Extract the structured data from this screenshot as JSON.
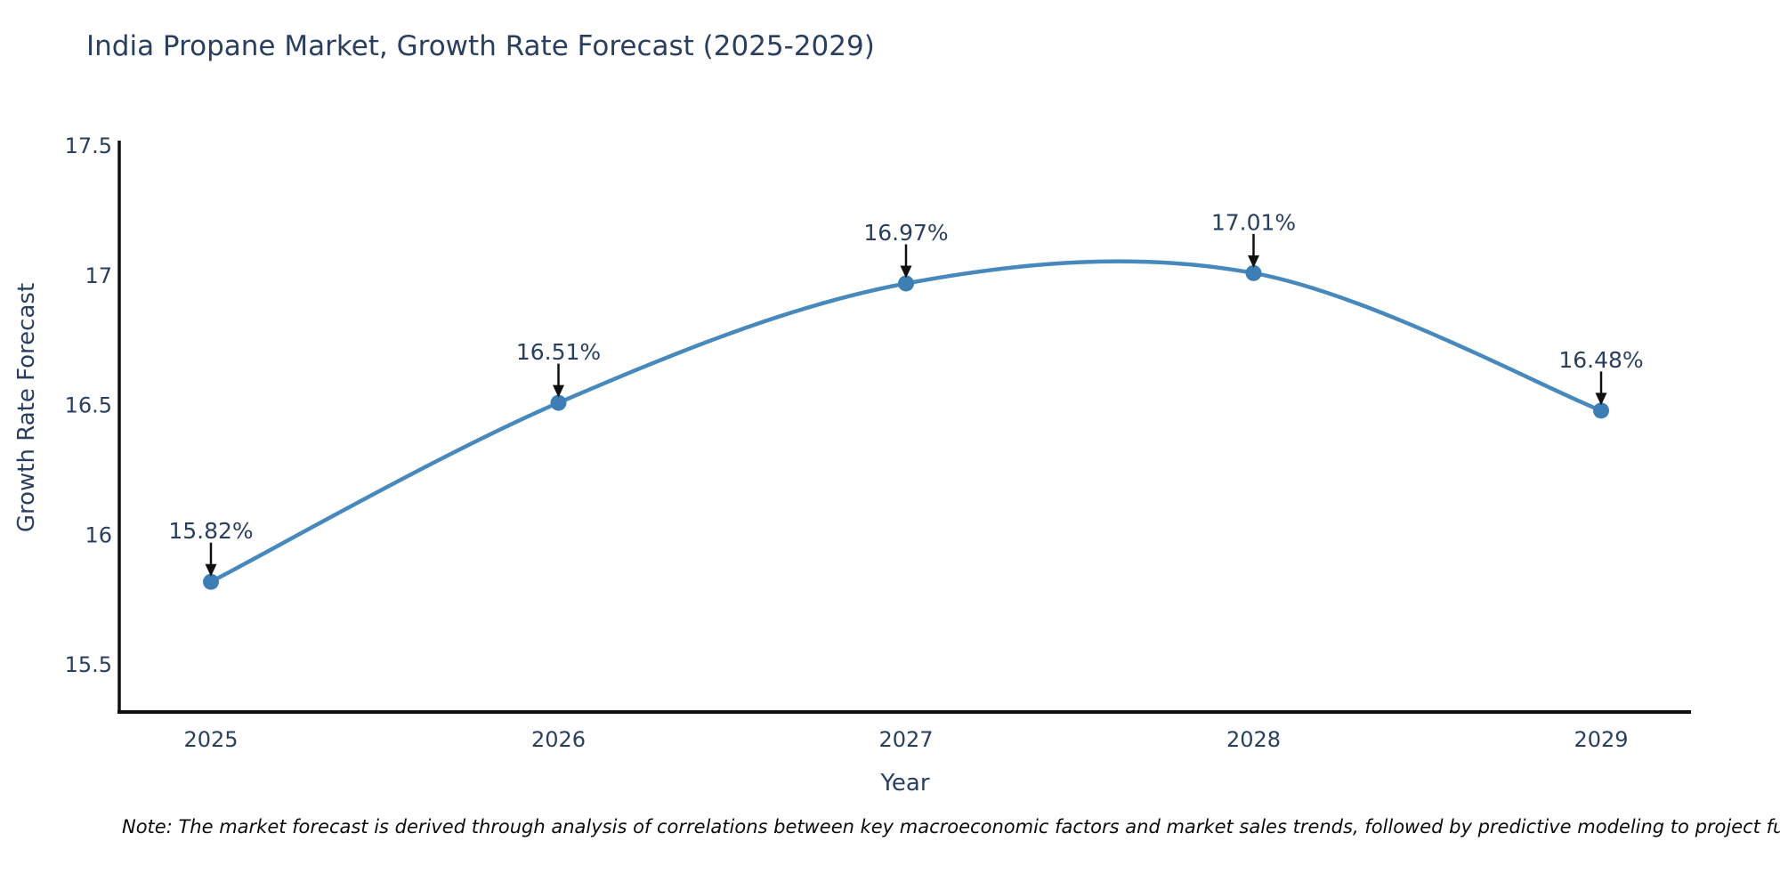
{
  "title": "India Propane Market, Growth Rate Forecast (2025-2029)",
  "note": "Note: The market forecast is derived through analysis of correlations between key macroeconomic factors and market sales trends, followed by predictive modeling to project future sal",
  "chart_data": {
    "type": "line",
    "title": "India Propane Market, Growth Rate Forecast (2025-2029)",
    "xlabel": "Year",
    "ylabel": "Growth Rate Forecast",
    "x": [
      2025,
      2026,
      2027,
      2028,
      2029
    ],
    "values": [
      15.82,
      16.51,
      16.97,
      17.01,
      16.48
    ],
    "point_labels": [
      "15.82%",
      "16.51%",
      "16.97%",
      "17.01%",
      "16.48%"
    ],
    "xtick_labels": [
      "2025",
      "2026",
      "2027",
      "2028",
      "2029"
    ],
    "yticks": [
      15.5,
      16,
      16.5,
      17,
      17.5
    ],
    "ytick_labels": [
      "15.5",
      "16",
      "16.5",
      "17",
      "17.5"
    ],
    "ylim": [
      15.32,
      17.52
    ],
    "line_shape": "spline",
    "grid": false,
    "legend": "none",
    "colors": {
      "line": "#4788bd",
      "marker": "#3d7fb5",
      "text": "#2a3f5f",
      "axis": "#101010",
      "arrow": "#101010"
    }
  }
}
